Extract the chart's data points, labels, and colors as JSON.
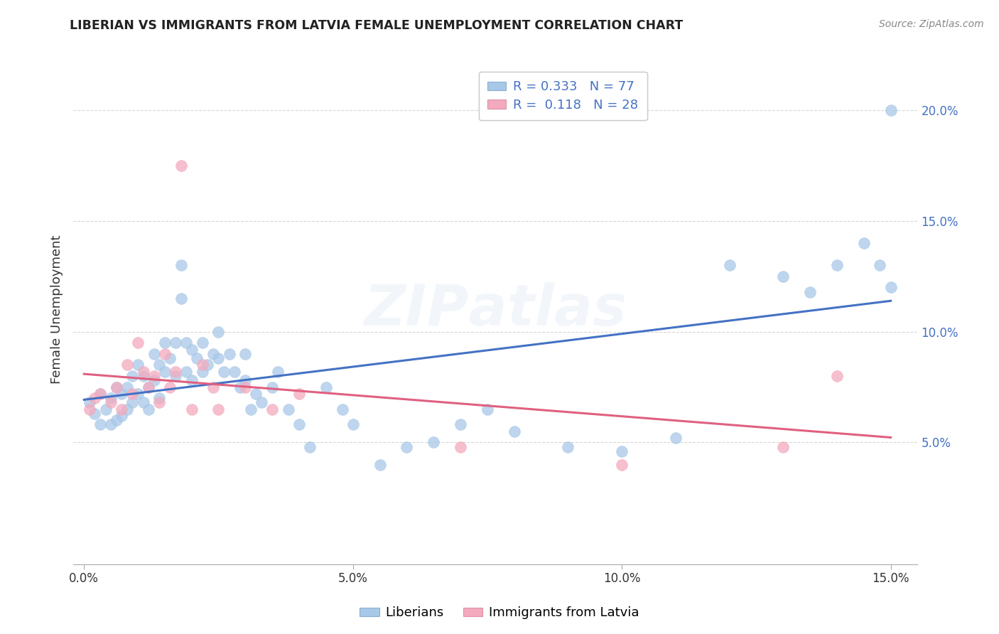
{
  "title": "LIBERIAN VS IMMIGRANTS FROM LATVIA FEMALE UNEMPLOYMENT CORRELATION CHART",
  "source": "Source: ZipAtlas.com",
  "ylabel": "Female Unemployment",
  "xlim": [
    -0.002,
    0.155
  ],
  "ylim": [
    -0.005,
    0.225
  ],
  "xtick_labels": [
    "0.0%",
    "5.0%",
    "10.0%",
    "15.0%"
  ],
  "xtick_vals": [
    0.0,
    0.05,
    0.1,
    0.15
  ],
  "ytick_labels": [
    "5.0%",
    "10.0%",
    "15.0%",
    "20.0%"
  ],
  "ytick_vals": [
    0.05,
    0.1,
    0.15,
    0.2
  ],
  "liberian_R": 0.333,
  "liberian_N": 77,
  "latvia_R": 0.118,
  "latvia_N": 28,
  "blue_color": "#a8c8e8",
  "pink_color": "#f4aabe",
  "blue_line_color": "#4472c4",
  "pink_line_color": "#e06080",
  "liberian_x": [
    0.001,
    0.002,
    0.003,
    0.003,
    0.004,
    0.005,
    0.005,
    0.006,
    0.006,
    0.007,
    0.007,
    0.008,
    0.008,
    0.009,
    0.009,
    0.01,
    0.01,
    0.011,
    0.011,
    0.012,
    0.012,
    0.013,
    0.013,
    0.014,
    0.014,
    0.015,
    0.015,
    0.016,
    0.017,
    0.017,
    0.018,
    0.018,
    0.019,
    0.019,
    0.02,
    0.02,
    0.021,
    0.022,
    0.022,
    0.023,
    0.024,
    0.025,
    0.025,
    0.026,
    0.027,
    0.028,
    0.029,
    0.03,
    0.03,
    0.031,
    0.032,
    0.033,
    0.035,
    0.036,
    0.038,
    0.04,
    0.042,
    0.045,
    0.048,
    0.05,
    0.055,
    0.06,
    0.065,
    0.07,
    0.075,
    0.08,
    0.09,
    0.1,
    0.11,
    0.12,
    0.13,
    0.135,
    0.14,
    0.145,
    0.148,
    0.15,
    0.15
  ],
  "liberian_y": [
    0.068,
    0.063,
    0.072,
    0.058,
    0.065,
    0.07,
    0.058,
    0.075,
    0.06,
    0.072,
    0.062,
    0.075,
    0.065,
    0.08,
    0.068,
    0.085,
    0.072,
    0.08,
    0.068,
    0.075,
    0.065,
    0.09,
    0.078,
    0.085,
    0.07,
    0.095,
    0.082,
    0.088,
    0.095,
    0.08,
    0.13,
    0.115,
    0.095,
    0.082,
    0.092,
    0.078,
    0.088,
    0.095,
    0.082,
    0.085,
    0.09,
    0.1,
    0.088,
    0.082,
    0.09,
    0.082,
    0.075,
    0.09,
    0.078,
    0.065,
    0.072,
    0.068,
    0.075,
    0.082,
    0.065,
    0.058,
    0.048,
    0.075,
    0.065,
    0.058,
    0.04,
    0.048,
    0.05,
    0.058,
    0.065,
    0.055,
    0.048,
    0.046,
    0.052,
    0.13,
    0.125,
    0.118,
    0.13,
    0.14,
    0.13,
    0.12,
    0.2
  ],
  "latvia_x": [
    0.001,
    0.002,
    0.003,
    0.005,
    0.006,
    0.007,
    0.008,
    0.009,
    0.01,
    0.011,
    0.012,
    0.013,
    0.014,
    0.015,
    0.016,
    0.017,
    0.018,
    0.02,
    0.022,
    0.024,
    0.025,
    0.03,
    0.035,
    0.04,
    0.07,
    0.1,
    0.13,
    0.14
  ],
  "latvia_y": [
    0.065,
    0.07,
    0.072,
    0.068,
    0.075,
    0.065,
    0.085,
    0.072,
    0.095,
    0.082,
    0.075,
    0.08,
    0.068,
    0.09,
    0.075,
    0.082,
    0.175,
    0.065,
    0.085,
    0.075,
    0.065,
    0.075,
    0.065,
    0.072,
    0.048,
    0.04,
    0.048,
    0.08
  ]
}
